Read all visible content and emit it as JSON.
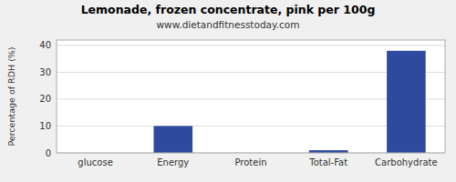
{
  "chart_data": {
    "type": "bar",
    "title": "Lemonade, frozen concentrate, pink per 100g",
    "subtitle": "www.dietandfitnesstoday.com",
    "categories": [
      "glucose",
      "Energy",
      "Protein",
      "Total-Fat",
      "Carbohydrate"
    ],
    "values": [
      0,
      10,
      0,
      1,
      38
    ],
    "color": "#2e4a9e",
    "ylabel": "Percentage of RDH (%)",
    "ylim": [
      0,
      42
    ],
    "yticks": [
      0,
      10,
      20,
      30,
      40
    ],
    "grid": true
  }
}
